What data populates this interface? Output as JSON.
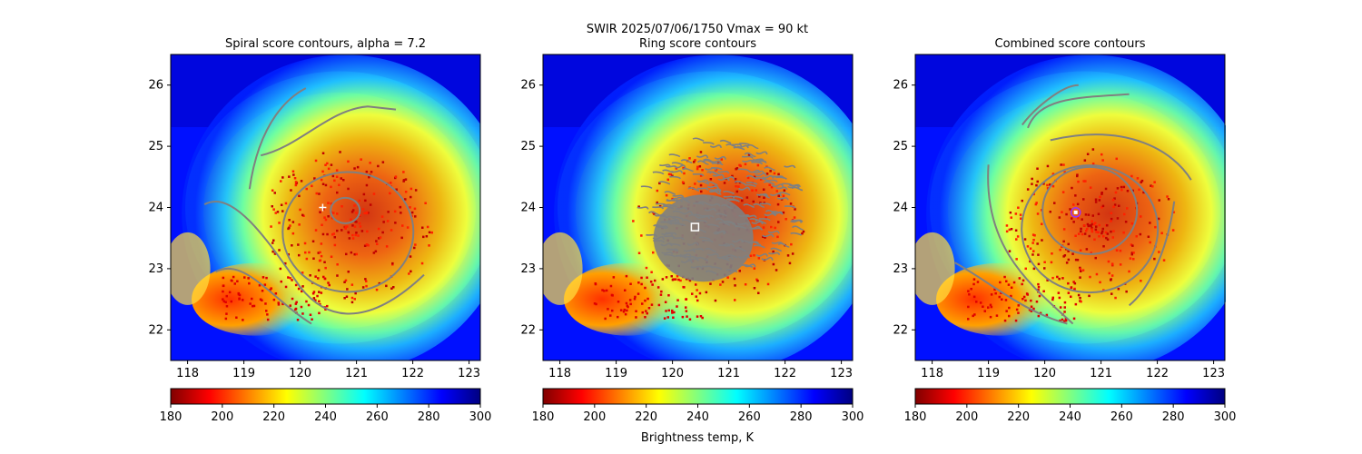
{
  "figure": {
    "suptitle_line1": "SWIR  2025/07/06/1750    Vmax = 90 kt"
  },
  "colorbar": {
    "label": "Brightness temp, K",
    "ticks": [
      180,
      200,
      220,
      240,
      260,
      280,
      300
    ],
    "range": [
      180,
      300
    ],
    "colormap": "jet_r",
    "stops": [
      "#800000",
      "#ff0000",
      "#ff8000",
      "#ffff00",
      "#80ff80",
      "#00ffff",
      "#0080ff",
      "#0000ff",
      "#000080"
    ]
  },
  "chart_data": [
    {
      "type": "heatmap",
      "title": "Spiral score contours, alpha =  7.2",
      "xlabel": "",
      "ylabel": "",
      "xlim": [
        117.7,
        123.2
      ],
      "ylim": [
        21.5,
        26.5
      ],
      "xticks": [
        118,
        119,
        120,
        121,
        122,
        123
      ],
      "yticks": [
        22,
        23,
        24,
        25,
        26
      ],
      "center_marker": {
        "type": "plus",
        "color": "#ffffff",
        "lon": 120.4,
        "lat": 24.0
      },
      "contour_color": "#808080"
    },
    {
      "type": "heatmap",
      "title": "Ring score contours",
      "xlabel": "",
      "ylabel": "",
      "xlim": [
        117.7,
        123.2
      ],
      "ylim": [
        21.5,
        26.5
      ],
      "xticks": [
        118,
        119,
        120,
        121,
        122,
        123
      ],
      "yticks": [
        22,
        23,
        24,
        25,
        26
      ],
      "center_marker": {
        "type": "square",
        "color": "#ffffff",
        "lon": 120.4,
        "lat": 23.68
      },
      "contour_color": "#808080"
    },
    {
      "type": "heatmap",
      "title": "Combined score contours",
      "xlabel": "",
      "ylabel": "",
      "xlim": [
        117.7,
        123.2
      ],
      "ylim": [
        21.5,
        26.5
      ],
      "xticks": [
        118,
        119,
        120,
        121,
        122,
        123
      ],
      "yticks": [
        22,
        23,
        24,
        25,
        26
      ],
      "center_marker": {
        "type": "circle",
        "color": "#9a30ff",
        "lon": 120.55,
        "lat": 23.92
      },
      "contour_color": "#808080"
    }
  ]
}
